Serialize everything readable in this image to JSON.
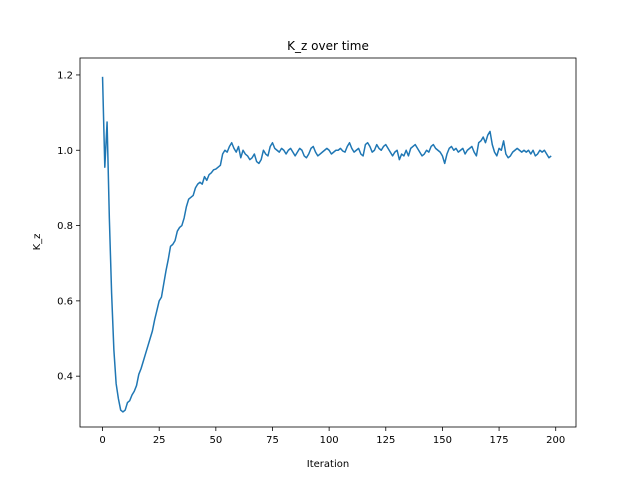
{
  "chart_data": {
    "type": "line",
    "title": "K_z over time",
    "xlabel": "Iteration",
    "ylabel": "K_z",
    "xlim": [
      -9.95,
      208.95
    ],
    "ylim": [
      0.265,
      1.245
    ],
    "xticks": [
      0,
      25,
      50,
      75,
      100,
      125,
      150,
      175,
      200
    ],
    "yticks": [
      0.4,
      0.6,
      0.8,
      1.0,
      1.2
    ],
    "xtick_labels": [
      "0",
      "25",
      "50",
      "75",
      "100",
      "125",
      "150",
      "175",
      "200"
    ],
    "ytick_labels": [
      "0.4",
      "0.6",
      "0.8",
      "1.0",
      "1.2"
    ],
    "grid": false,
    "legend": "none",
    "series": [
      {
        "color": "#1f77b4",
        "x": [
          0,
          1,
          2,
          3,
          4,
          5,
          6,
          7,
          8,
          9,
          10,
          11,
          12,
          13,
          14,
          15,
          16,
          17,
          18,
          19,
          20,
          21,
          22,
          23,
          24,
          25,
          26,
          27,
          28,
          29,
          30,
          31,
          32,
          33,
          34,
          35,
          36,
          37,
          38,
          39,
          40,
          41,
          42,
          43,
          44,
          45,
          46,
          47,
          48,
          49,
          50,
          51,
          52,
          53,
          54,
          55,
          56,
          57,
          58,
          59,
          60,
          61,
          62,
          63,
          64,
          65,
          66,
          67,
          68,
          69,
          70,
          71,
          72,
          73,
          74,
          75,
          76,
          77,
          78,
          79,
          80,
          81,
          82,
          83,
          84,
          85,
          86,
          87,
          88,
          89,
          90,
          91,
          92,
          93,
          94,
          95,
          96,
          97,
          98,
          99,
          100,
          101,
          102,
          103,
          104,
          105,
          106,
          107,
          108,
          109,
          110,
          111,
          112,
          113,
          114,
          115,
          116,
          117,
          118,
          119,
          120,
          121,
          122,
          123,
          124,
          125,
          126,
          127,
          128,
          129,
          130,
          131,
          132,
          133,
          134,
          135,
          136,
          137,
          138,
          139,
          140,
          141,
          142,
          143,
          144,
          145,
          146,
          147,
          148,
          149,
          150,
          151,
          152,
          153,
          154,
          155,
          156,
          157,
          158,
          159,
          160,
          161,
          162,
          163,
          164,
          165,
          166,
          167,
          168,
          169,
          170,
          171,
          172,
          173,
          174,
          175,
          176,
          177,
          178,
          179,
          180,
          181,
          182,
          183,
          184,
          185,
          186,
          187,
          188,
          189,
          190,
          191,
          192,
          193,
          194,
          195,
          196,
          197,
          198
        ],
        "y": [
          1.195,
          0.955,
          1.075,
          0.82,
          0.62,
          0.47,
          0.38,
          0.34,
          0.31,
          0.305,
          0.31,
          0.33,
          0.335,
          0.35,
          0.36,
          0.375,
          0.405,
          0.42,
          0.44,
          0.46,
          0.48,
          0.5,
          0.52,
          0.55,
          0.575,
          0.6,
          0.61,
          0.645,
          0.68,
          0.71,
          0.745,
          0.75,
          0.76,
          0.785,
          0.795,
          0.8,
          0.82,
          0.85,
          0.87,
          0.875,
          0.88,
          0.9,
          0.91,
          0.915,
          0.91,
          0.93,
          0.92,
          0.935,
          0.94,
          0.948,
          0.95,
          0.955,
          0.96,
          0.99,
          1.0,
          0.995,
          1.01,
          1.02,
          1.005,
          0.995,
          1.01,
          0.98,
          1.0,
          0.99,
          0.985,
          0.975,
          0.98,
          0.99,
          0.97,
          0.965,
          0.975,
          1.0,
          0.99,
          0.985,
          1.01,
          1.02,
          1.005,
          1.0,
          0.995,
          1.005,
          1.0,
          0.99,
          1.0,
          1.005,
          0.995,
          0.985,
          0.995,
          1.005,
          1.0,
          0.985,
          0.98,
          0.99,
          1.005,
          1.01,
          0.995,
          0.985,
          0.99,
          0.995,
          1.0,
          1.005,
          1.0,
          0.99,
          0.995,
          1.0,
          1.0,
          1.005,
          0.998,
          0.995,
          1.01,
          1.02,
          1.005,
          0.995,
          1.0,
          1.005,
          0.99,
          0.985,
          1.015,
          1.02,
          1.01,
          0.995,
          1.0,
          1.015,
          1.005,
          1.0,
          1.01,
          1.015,
          1.005,
          0.995,
          0.985,
          0.995,
          1.0,
          0.975,
          0.99,
          0.985,
          1.0,
          0.985,
          1.005,
          1.01,
          1.015,
          1.005,
          0.995,
          0.985,
          0.99,
          1.0,
          0.995,
          1.01,
          1.015,
          1.005,
          1.0,
          0.995,
          0.985,
          0.965,
          0.99,
          1.005,
          1.01,
          1.0,
          1.005,
          0.995,
          1.0,
          1.005,
          0.99,
          1.0,
          1.005,
          1.01,
          0.995,
          0.985,
          1.02,
          1.025,
          1.035,
          1.02,
          1.04,
          1.05,
          1.015,
          0.995,
          0.985,
          1.005,
          1.0,
          1.025,
          0.99,
          0.98,
          0.985,
          0.995,
          1.0,
          1.005,
          1.0,
          0.995,
          1.0,
          0.995,
          1.0,
          0.99,
          1.0,
          0.985,
          0.99,
          1.0,
          0.995,
          1.0,
          0.99,
          0.98,
          0.985
        ]
      }
    ]
  }
}
